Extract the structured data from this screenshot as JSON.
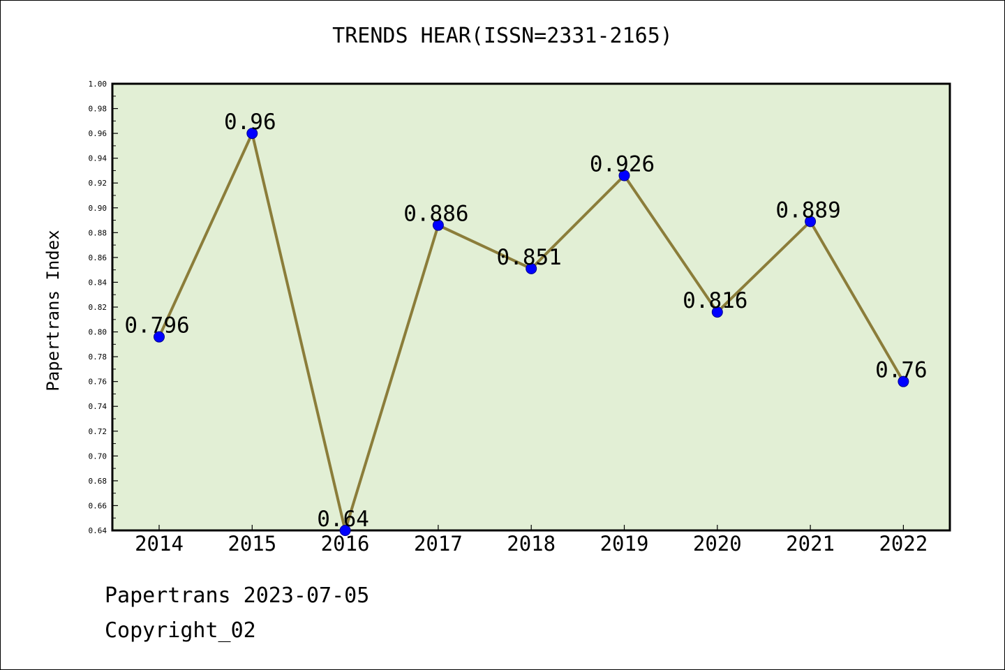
{
  "chart_data": {
    "type": "line",
    "title": "TRENDS HEAR(ISSN=2331-2165)",
    "xlabel": "",
    "ylabel": "Papertrans Index",
    "categories": [
      "2014",
      "2015",
      "2016",
      "2017",
      "2018",
      "2019",
      "2020",
      "2021",
      "2022"
    ],
    "values": [
      0.796,
      0.96,
      0.64,
      0.886,
      0.851,
      0.926,
      0.816,
      0.889,
      0.76
    ],
    "data_labels": [
      "0.796",
      "0.96",
      "0.64",
      "0.886",
      "0.851",
      "0.926",
      "0.816",
      "0.889",
      "0.76"
    ],
    "ylim": [
      0.64,
      1.0
    ],
    "yticks": [
      "0.64",
      "0.66",
      "0.68",
      "0.70",
      "0.72",
      "0.74",
      "0.76",
      "0.78",
      "0.80",
      "0.82",
      "0.84",
      "0.86",
      "0.88",
      "0.90",
      "0.92",
      "0.94",
      "0.96",
      "0.98",
      "1.00"
    ],
    "grid": false,
    "colors": {
      "line": "#8b7d3a",
      "marker": "#0000ff",
      "plot_background": "#e2efd5"
    }
  },
  "footer": {
    "line1": "Papertrans 2023-07-05",
    "line2": "Copyright_02"
  }
}
